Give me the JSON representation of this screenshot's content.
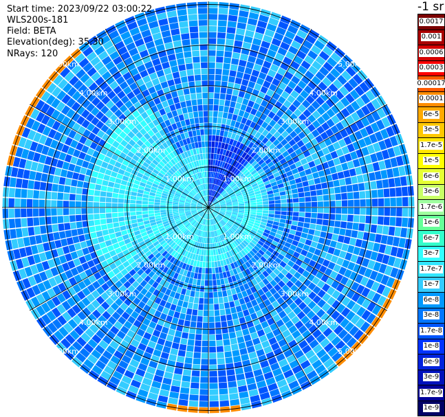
{
  "info": {
    "start_time": "Start time: 2023/09/22 03:00:22",
    "instrument": "WLS200s-181",
    "field": "Field: BETA",
    "elevation": "Elevation(deg): 35.30",
    "nrays": "NRays: 120"
  },
  "colorbar": {
    "title": "-1 sr",
    "labels": [
      "0.0017",
      "0.001",
      "0.0006",
      "0.0003",
      "0.00017",
      "0.0001",
      "6e-5",
      "3e-5",
      "1.7e-5",
      "1e-5",
      "6e-6",
      "3e-6",
      "1.7e-6",
      "1e-6",
      "6e-7",
      "3e-7",
      "1.7e-7",
      "1e-7",
      "6e-8",
      "3e-8",
      "1.7e-8",
      "1e-8",
      "6e-9",
      "3e-9",
      "1.7e-9",
      "1e-9"
    ],
    "colors": [
      "#7a0000",
      "#a80000",
      "#d40000",
      "#ff0000",
      "#ff5a00",
      "#ff8c00",
      "#ffaa00",
      "#ffc800",
      "#ffe600",
      "#ffff00",
      "#e6ff33",
      "#c8ff66",
      "#a0ffa0",
      "#66ff99",
      "#33ffcc",
      "#33ffff",
      "#33e6ff",
      "#33ccff",
      "#0099ff",
      "#0077ff",
      "#0055ff",
      "#0033ff",
      "#0022dd",
      "#0011bb",
      "#000099",
      "#000066"
    ]
  },
  "chart_data": {
    "type": "ppi",
    "field": "BETA",
    "elevation_deg": 35.3,
    "n_rays": 120,
    "range_rings_km": [
      1,
      2,
      3,
      4,
      5
    ],
    "ring_labels": [
      "1.00km",
      "2.00km",
      "3.00km",
      "4.00km",
      "5.00km"
    ],
    "max_range_km": 5.0,
    "radial_lines_deg": [
      0,
      30,
      60,
      90,
      120,
      150,
      180,
      210,
      240,
      270,
      300,
      330
    ],
    "scale": "log",
    "vmin": 1e-09,
    "vmax": 0.0017
  }
}
